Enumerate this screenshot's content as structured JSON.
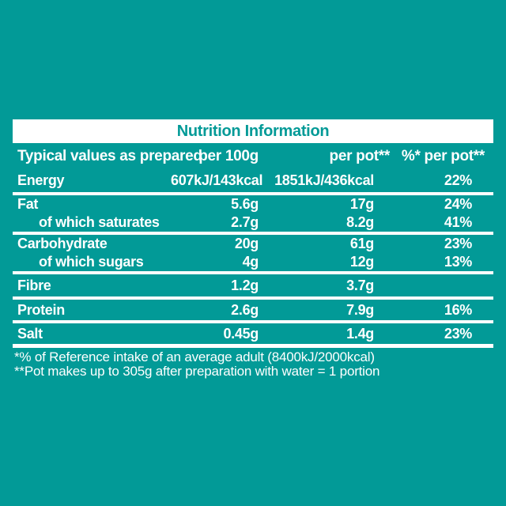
{
  "colors": {
    "background_teal": "#029a97",
    "title_band_background": "#ffffff",
    "title_text_teal": "#029a97",
    "body_text_white": "#ffffff",
    "separator_white": "#ffffff"
  },
  "table": {
    "title": "Nutrition Information",
    "header": {
      "col1": "Typical values as prepared",
      "col2": "per 100g",
      "col3": "per pot**",
      "col4": "%* per pot**"
    },
    "rows": [
      {
        "label": "Energy",
        "per_100g": "607kJ/143kcal",
        "per_pot": "1851kJ/436kcal",
        "pct_per_pot": "22%"
      },
      {
        "label": "Fat",
        "per_100g": "5.6g",
        "per_pot": "17g",
        "pct_per_pot": "24%"
      },
      {
        "label": "of which saturates",
        "per_100g": "2.7g",
        "per_pot": "8.2g",
        "pct_per_pot": "41%"
      },
      {
        "label": "Carbohydrate",
        "per_100g": "20g",
        "per_pot": "61g",
        "pct_per_pot": "23%"
      },
      {
        "label": "of which sugars",
        "per_100g": "4g",
        "per_pot": "12g",
        "pct_per_pot": "13%"
      },
      {
        "label": "Fibre",
        "per_100g": "1.2g",
        "per_pot": "3.7g",
        "pct_per_pot": ""
      },
      {
        "label": "Protein",
        "per_100g": "2.6g",
        "per_pot": "7.9g",
        "pct_per_pot": "16%"
      },
      {
        "label": "Salt",
        "per_100g": "0.45g",
        "per_pot": "1.4g",
        "pct_per_pot": "23%"
      }
    ],
    "footnotes": [
      "*% of Reference intake of an average adult (8400kJ/2000kcal)",
      "**Pot makes up to 305g after preparation with water = 1 portion"
    ]
  }
}
